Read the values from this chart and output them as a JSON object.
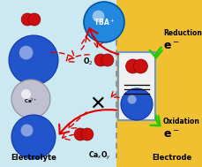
{
  "bg_left_color": "#cce8f0",
  "bg_right_color": "#f0c030",
  "dashed_line_x": 0.575,
  "blue_ball_color": "#2255cc",
  "blue_ball_edge": "#1133aa",
  "red_ball_color": "#cc1010",
  "red_ball_edge": "#880000",
  "ca_ball_color": "#c0c0d0",
  "ca_ball_edge": "#909090",
  "tba_ball_color": "#2288dd",
  "tba_ball_edge": "#0055aa",
  "arrow_color": "#dd0000",
  "green_arrow_color": "#22cc00",
  "box_color": "#7799bb",
  "box_bg": "#f0f0f0",
  "label_electrolyte": "Electrolyte",
  "label_electrode": "Electrode",
  "label_caxoy": "Ca$_x$O$_y$",
  "label_tba": "TBA$^+$",
  "label_o2": "O$_2$",
  "label_ca": "Ca$^{2+}$",
  "label_reduction": "Reduction",
  "label_oxidation": "Oxidation",
  "label_eminus": "e$^-$"
}
